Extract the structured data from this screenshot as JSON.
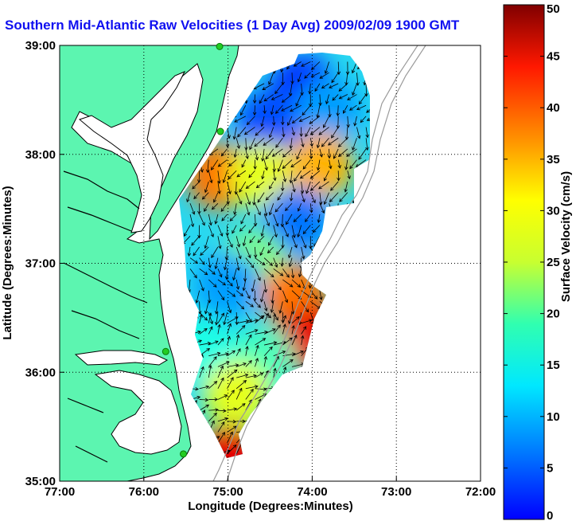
{
  "title": "Southern Mid-Atlantic Raw Velocities (1 Day Avg) 2009/02/09 1900 GMT",
  "colors": {
    "land": "#5cf5b0",
    "title": "#1010f0",
    "grid": "#000000",
    "coast": "#000000",
    "bathymetry": "#9a9a9a",
    "station": "#22cc22"
  },
  "chart_data": {
    "type": "heatmap",
    "xlabel": "Longitude (Degrees:Minutes)",
    "ylabel": "Latitude (Degrees:Minutes)",
    "xlim": [
      -77,
      -72
    ],
    "ylim": [
      35,
      39
    ],
    "xticks": [
      {
        "value": -77,
        "label": "77:00"
      },
      {
        "value": -76,
        "label": "76:00"
      },
      {
        "value": -75,
        "label": "75:00"
      },
      {
        "value": -74,
        "label": "74:00"
      },
      {
        "value": -73,
        "label": "73:00"
      },
      {
        "value": -72,
        "label": "72:00"
      }
    ],
    "yticks": [
      {
        "value": 35,
        "label": "35:00"
      },
      {
        "value": 36,
        "label": "36:00"
      },
      {
        "value": 37,
        "label": "37:00"
      },
      {
        "value": 38,
        "label": "38:00"
      },
      {
        "value": 39,
        "label": "39:00"
      }
    ],
    "grid": "dotted",
    "colorbar": {
      "label": "Surface Velocity (cm/s)",
      "range": [
        0,
        50
      ],
      "ticks": [
        0,
        5,
        10,
        15,
        20,
        25,
        30,
        35,
        40,
        45,
        50
      ],
      "colormap": "jet"
    },
    "stations": [
      {
        "lon": -75.1,
        "lat": 38.99
      },
      {
        "lon": -75.09,
        "lat": 38.21
      },
      {
        "lon": -75.74,
        "lat": 36.19
      },
      {
        "lon": -75.53,
        "lat": 35.25
      }
    ],
    "speed_field": [
      {
        "lon": -74.1,
        "lat": 38.6,
        "speed": 8
      },
      {
        "lon": -74.5,
        "lat": 38.3,
        "speed": 10
      },
      {
        "lon": -73.8,
        "lat": 38.4,
        "speed": 14
      },
      {
        "lon": -75.1,
        "lat": 37.8,
        "speed": 38
      },
      {
        "lon": -74.6,
        "lat": 37.8,
        "speed": 30
      },
      {
        "lon": -73.9,
        "lat": 37.9,
        "speed": 35
      },
      {
        "lon": -74.2,
        "lat": 37.4,
        "speed": 12
      },
      {
        "lon": -74.7,
        "lat": 37.0,
        "speed": 25
      },
      {
        "lon": -74.2,
        "lat": 36.7,
        "speed": 38
      },
      {
        "lon": -74.0,
        "lat": 36.3,
        "speed": 45
      },
      {
        "lon": -74.6,
        "lat": 36.1,
        "speed": 22
      },
      {
        "lon": -75.3,
        "lat": 36.2,
        "speed": 20
      },
      {
        "lon": -74.9,
        "lat": 35.8,
        "speed": 30
      },
      {
        "lon": -75.0,
        "lat": 35.2,
        "speed": 45
      },
      {
        "lon": -75.0,
        "lat": 36.8,
        "speed": 14
      }
    ],
    "vector_flow": [
      {
        "lat": 38.6,
        "dir_deg": 210
      },
      {
        "lat": 38.0,
        "dir_deg": 200
      },
      {
        "lat": 37.4,
        "dir_deg": 190
      },
      {
        "lat": 36.8,
        "dir_deg": 160
      },
      {
        "lat": 36.2,
        "dir_deg": 45
      },
      {
        "lat": 35.6,
        "dir_deg": 60
      }
    ]
  }
}
